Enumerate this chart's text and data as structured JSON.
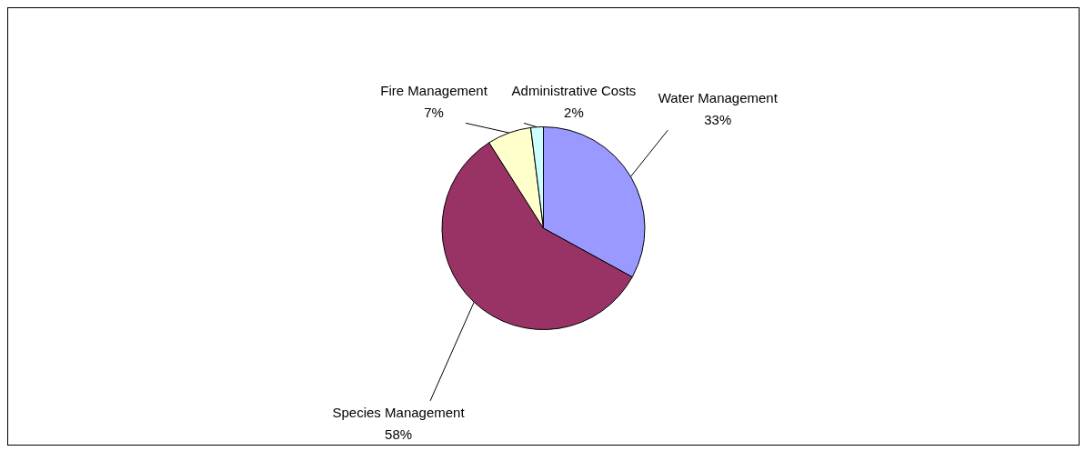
{
  "chart_data": {
    "type": "pie",
    "categories": [
      "Water Management",
      "Species Management",
      "Fire Management",
      "Administrative Costs"
    ],
    "values": [
      33,
      58,
      7,
      2
    ],
    "value_labels": [
      "33%",
      "58%",
      "7%",
      "2%"
    ],
    "colors": [
      "#9999ff",
      "#993366",
      "#ffffcc",
      "#ccffff"
    ],
    "legend": false
  }
}
